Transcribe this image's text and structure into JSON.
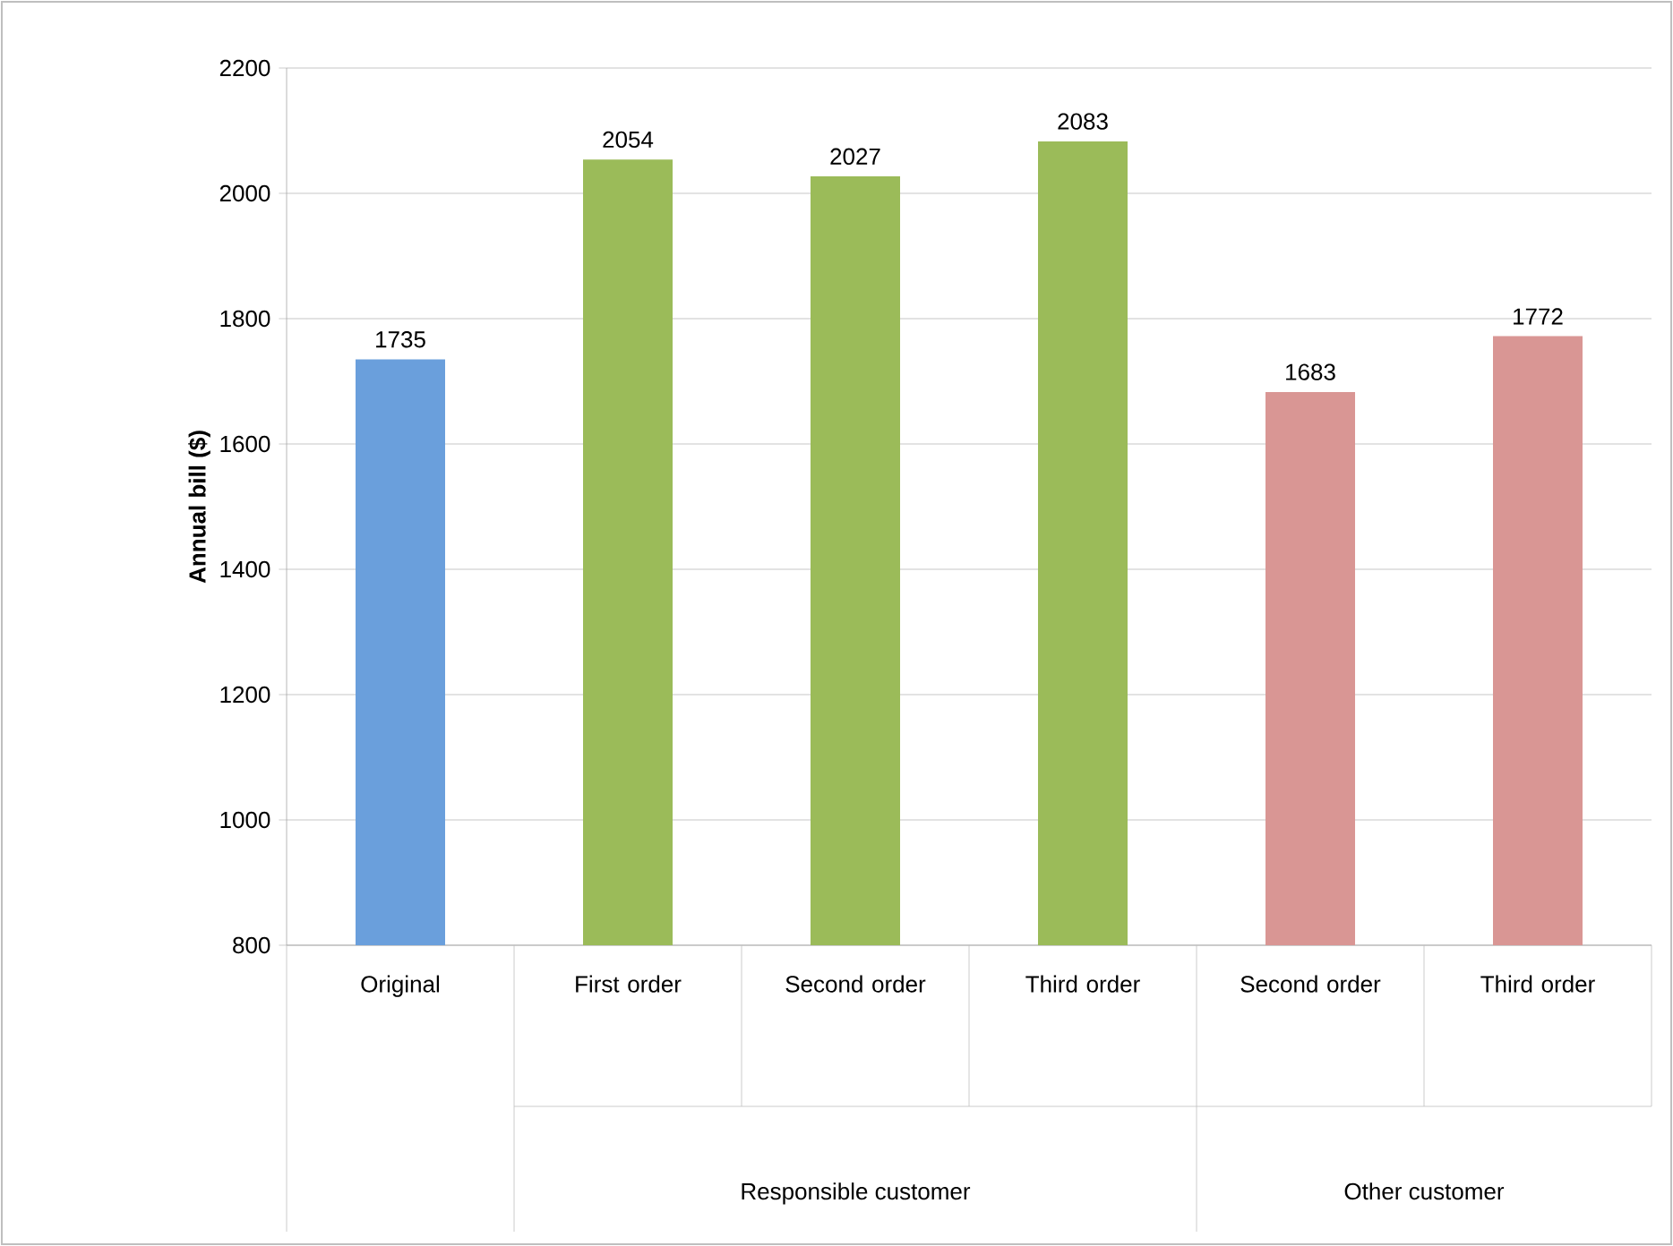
{
  "chart_data": {
    "type": "bar",
    "categories": [
      "Original",
      "First order",
      "Second order",
      "Third order",
      "Second order",
      "Third order"
    ],
    "values": [
      1735,
      2054,
      2027,
      2083,
      1683,
      1772
    ],
    "colors": [
      "#6a9fdc",
      "#9bbb59",
      "#9bbb59",
      "#9bbb59",
      "#d99694",
      "#d99694"
    ],
    "ylabel": "Annual bill ($)",
    "ylim": [
      800,
      2200
    ],
    "yticks": [
      800,
      1000,
      1200,
      1400,
      1600,
      1800,
      2000,
      2200
    ],
    "grid": "y",
    "data_labels": true,
    "annotations": [
      "Responsible customer",
      "Other customer"
    ]
  }
}
